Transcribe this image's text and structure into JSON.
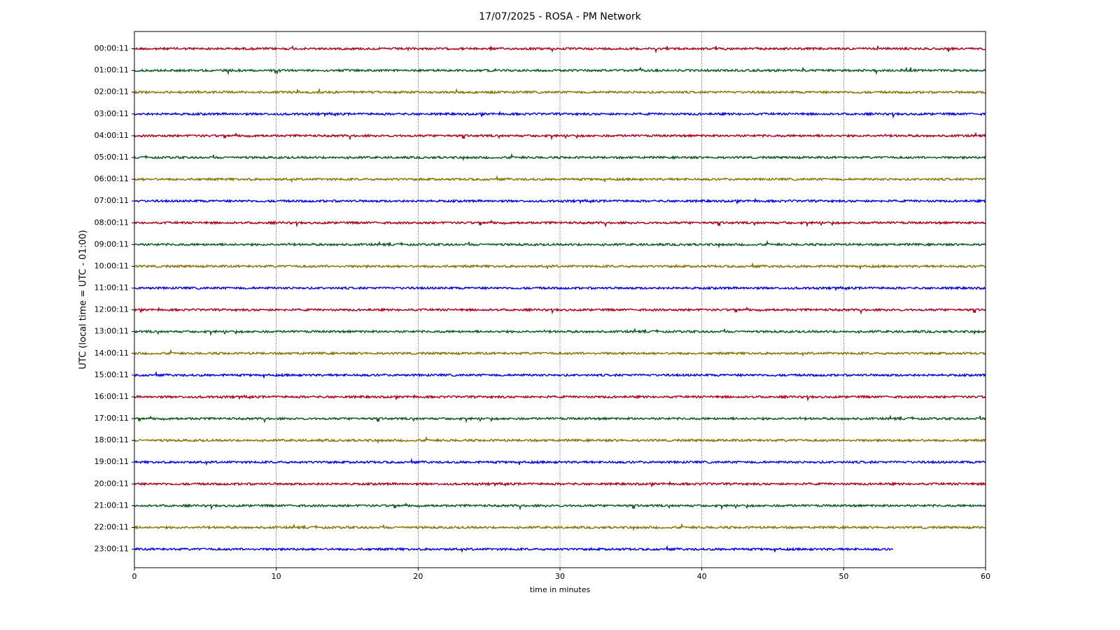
{
  "chart_data": {
    "type": "helicorder",
    "title": "17/07/2025 - ROSA - PM Network",
    "xlabel": "time in minutes",
    "ylabel": "UTC (local time = UTC - 01:00)",
    "xlim": [
      0,
      60
    ],
    "xticks": [
      0,
      10,
      20,
      30,
      40,
      50,
      60
    ],
    "grid": true,
    "colors": [
      "#b0001a",
      "#0b5a1e",
      "#867400",
      "#0000f5"
    ],
    "categories": [
      "00:00:11",
      "01:00:11",
      "02:00:11",
      "03:00:11",
      "04:00:11",
      "05:00:11",
      "06:00:11",
      "07:00:11",
      "08:00:11",
      "09:00:11",
      "10:00:11",
      "11:00:11",
      "12:00:11",
      "13:00:11",
      "14:00:11",
      "15:00:11",
      "16:00:11",
      "17:00:11",
      "18:00:11",
      "19:00:11",
      "20:00:11",
      "21:00:11",
      "22:00:11",
      "23:00:11"
    ],
    "trace_end": [
      60,
      60,
      60,
      60,
      60,
      60,
      60,
      60,
      60,
      60,
      60,
      60,
      60,
      60,
      60,
      60,
      60,
      60,
      60,
      60,
      60,
      60,
      60,
      53.5
    ]
  }
}
